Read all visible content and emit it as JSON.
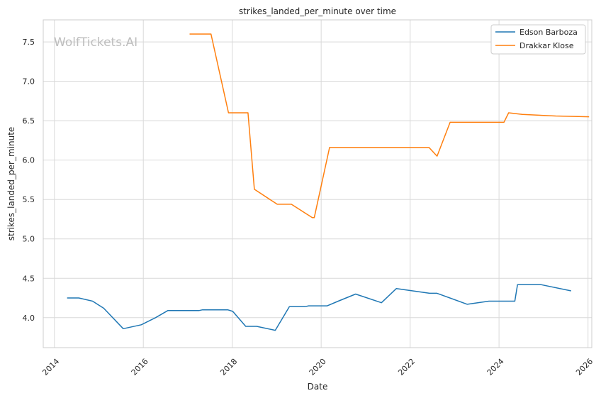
{
  "watermark": "WolfTickets.AI",
  "chart_data": {
    "type": "line",
    "title": "strikes_landed_per_minute over time",
    "xlabel": "Date",
    "ylabel": "strikes_landed_per_minute",
    "xlim": [
      "2013-10-01",
      "2026-02-01"
    ],
    "ylim": [
      3.62,
      7.78
    ],
    "xticks": [
      "2014-01-01",
      "2016-01-01",
      "2018-01-01",
      "2020-01-01",
      "2022-01-01",
      "2024-01-01",
      "2026-01-01"
    ],
    "xtick_labels": [
      "2014",
      "2016",
      "2018",
      "2020",
      "2022",
      "2024",
      "2026"
    ],
    "yticks": [
      4.0,
      4.5,
      5.0,
      5.5,
      6.0,
      6.5,
      7.0,
      7.5
    ],
    "ytick_labels": [
      "4.0",
      "4.5",
      "5.0",
      "5.5",
      "6.0",
      "6.5",
      "7.0",
      "7.5"
    ],
    "grid": true,
    "legend_position": "top-right",
    "series": [
      {
        "name": "Edson Barboza",
        "color": "#1f77b4",
        "points": [
          [
            "2014-04-15",
            4.25
          ],
          [
            "2014-07-20",
            4.25
          ],
          [
            "2014-11-10",
            4.21
          ],
          [
            "2015-02-10",
            4.12
          ],
          [
            "2015-07-20",
            3.86
          ],
          [
            "2015-12-15",
            3.91
          ],
          [
            "2016-04-10",
            4.0
          ],
          [
            "2016-07-20",
            4.09
          ],
          [
            "2017-04-01",
            4.09
          ],
          [
            "2017-05-01",
            4.1
          ],
          [
            "2017-11-25",
            4.1
          ],
          [
            "2018-01-05",
            4.08
          ],
          [
            "2018-04-21",
            3.89
          ],
          [
            "2018-07-20",
            3.89
          ],
          [
            "2018-12-20",
            3.84
          ],
          [
            "2019-04-15",
            4.14
          ],
          [
            "2019-08-20",
            4.14
          ],
          [
            "2019-09-20",
            4.15
          ],
          [
            "2020-02-20",
            4.15
          ],
          [
            "2020-05-20",
            4.21
          ],
          [
            "2020-10-10",
            4.3
          ],
          [
            "2021-05-10",
            4.19
          ],
          [
            "2021-09-10",
            4.37
          ],
          [
            "2022-06-10",
            4.31
          ],
          [
            "2022-08-10",
            4.31
          ],
          [
            "2023-04-15",
            4.17
          ],
          [
            "2023-10-10",
            4.21
          ],
          [
            "2024-05-10",
            4.21
          ],
          [
            "2024-06-01",
            4.42
          ],
          [
            "2024-12-10",
            4.42
          ],
          [
            "2025-08-15",
            4.34
          ]
        ]
      },
      {
        "name": "Drakkar Klose",
        "color": "#ff7f0e",
        "points": [
          [
            "2017-01-15",
            7.6
          ],
          [
            "2017-07-10",
            7.6
          ],
          [
            "2017-12-01",
            6.6
          ],
          [
            "2018-05-10",
            6.6
          ],
          [
            "2018-07-01",
            5.63
          ],
          [
            "2019-01-05",
            5.44
          ],
          [
            "2019-05-01",
            5.44
          ],
          [
            "2019-10-20",
            5.27
          ],
          [
            "2019-11-05",
            5.27
          ],
          [
            "2020-03-10",
            6.16
          ],
          [
            "2022-06-05",
            6.16
          ],
          [
            "2022-08-10",
            6.05
          ],
          [
            "2022-11-25",
            6.48
          ],
          [
            "2024-02-10",
            6.48
          ],
          [
            "2024-03-20",
            6.6
          ],
          [
            "2024-07-10",
            6.58
          ],
          [
            "2025-04-10",
            6.56
          ],
          [
            "2026-01-10",
            6.55
          ]
        ]
      }
    ]
  }
}
